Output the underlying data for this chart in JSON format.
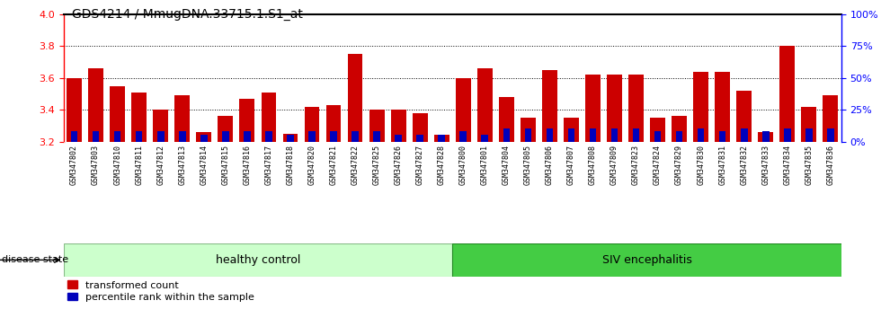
{
  "title": "GDS4214 / MmugDNA.33715.1.S1_at",
  "samples": [
    "GSM347802",
    "GSM347803",
    "GSM347810",
    "GSM347811",
    "GSM347812",
    "GSM347813",
    "GSM347814",
    "GSM347815",
    "GSM347816",
    "GSM347817",
    "GSM347818",
    "GSM347820",
    "GSM347821",
    "GSM347822",
    "GSM347825",
    "GSM347826",
    "GSM347827",
    "GSM347828",
    "GSM347800",
    "GSM347801",
    "GSM347804",
    "GSM347805",
    "GSM347806",
    "GSM347807",
    "GSM347808",
    "GSM347809",
    "GSM347823",
    "GSM347824",
    "GSM347829",
    "GSM347830",
    "GSM347831",
    "GSM347832",
    "GSM347833",
    "GSM347834",
    "GSM347835",
    "GSM347836"
  ],
  "transformed_count": [
    3.6,
    3.66,
    3.55,
    3.51,
    3.4,
    3.49,
    3.26,
    3.36,
    3.47,
    3.51,
    3.25,
    3.42,
    3.43,
    3.75,
    3.4,
    3.4,
    3.38,
    3.24,
    3.6,
    3.66,
    3.48,
    3.35,
    3.65,
    3.35,
    3.62,
    3.62,
    3.62,
    3.35,
    3.36,
    3.64,
    3.64,
    3.52,
    3.26,
    3.8,
    3.42,
    3.49
  ],
  "percentile_rank_pct": [
    8,
    8,
    8,
    8,
    8,
    8,
    5,
    8,
    8,
    8,
    5,
    8,
    8,
    8,
    8,
    5,
    5,
    5,
    8,
    5,
    10,
    10,
    10,
    10,
    10,
    10,
    10,
    8,
    8,
    10,
    8,
    10,
    8,
    10,
    10,
    10
  ],
  "ylim_left": [
    3.2,
    4.0
  ],
  "ylim_right": [
    0,
    100
  ],
  "yticks_left": [
    3.2,
    3.4,
    3.6,
    3.8,
    4.0
  ],
  "yticks_right": [
    0,
    25,
    50,
    75,
    100
  ],
  "ytick_labels_right": [
    "0%",
    "25%",
    "50%",
    "75%",
    "100%"
  ],
  "healthy_control_count": 18,
  "bar_color_red": "#CC0000",
  "bar_color_blue": "#0000BB",
  "hc_color": "#ccffcc",
  "siv_color": "#44cc44",
  "xtick_bg": "#cccccc",
  "legend_items": [
    "transformed count",
    "percentile rank within the sample"
  ],
  "disease_state_label": "disease state",
  "group_labels": [
    "healthy control",
    "SIV encephalitis"
  ]
}
